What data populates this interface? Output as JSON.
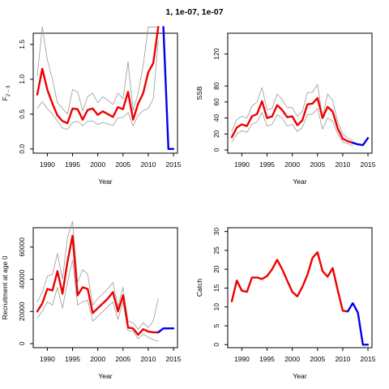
{
  "title": "1, 1e-07, 1e-07",
  "colors": {
    "estimate": "#ee0000",
    "bounds": "#999999",
    "projection": "#0000ee",
    "axes": "#000000"
  },
  "chart_data": [
    {
      "id": "f",
      "type": "line",
      "xlabel": "Year",
      "ylabel": "F",
      "ylabel_sub": "2 − 3",
      "xlim": [
        1987.2,
        2015.8
      ],
      "ylim": [
        -0.06,
        1.66
      ],
      "xticks": [
        1990,
        1995,
        2000,
        2005,
        2010,
        2015
      ],
      "yticks": [
        0.0,
        0.5,
        1.0,
        1.5
      ],
      "ytick_labels": [
        "0.0",
        "0.5",
        "1.0",
        "1.5"
      ],
      "series": [
        {
          "role": "upper",
          "color": "#999999",
          "x": [
            1988,
            1989,
            1990,
            1991,
            1992,
            1993,
            1994,
            1995,
            1996,
            1997,
            1998,
            1999,
            2000,
            2001,
            2002,
            2003,
            2004,
            2005,
            2006,
            2007,
            2008,
            2009,
            2010,
            2011,
            2012
          ],
          "y": [
            1.05,
            1.75,
            1.28,
            1.0,
            0.66,
            0.58,
            0.5,
            0.85,
            0.82,
            0.55,
            0.75,
            0.8,
            0.66,
            0.75,
            0.7,
            0.64,
            0.8,
            0.72,
            1.25,
            0.55,
            0.8,
            1.2,
            1.75,
            1.75,
            1.75
          ]
        },
        {
          "role": "lower",
          "color": "#999999",
          "x": [
            1988,
            1989,
            1990,
            1991,
            1992,
            1993,
            1994,
            1995,
            1996,
            1997,
            1998,
            1999,
            2000,
            2001,
            2002,
            2003,
            2004,
            2005,
            2006,
            2007,
            2008,
            2009,
            2010,
            2011,
            2012
          ],
          "y": [
            0.58,
            0.68,
            0.58,
            0.5,
            0.4,
            0.3,
            0.28,
            0.38,
            0.4,
            0.33,
            0.4,
            0.4,
            0.35,
            0.38,
            0.36,
            0.34,
            0.45,
            0.45,
            0.52,
            0.33,
            0.48,
            0.55,
            0.58,
            0.72,
            1.55
          ]
        },
        {
          "role": "estimate",
          "color": "#ee0000",
          "x": [
            1988,
            1989,
            1990,
            1991,
            1992,
            1993,
            1994,
            1995,
            1996,
            1997,
            1998,
            1999,
            2000,
            2001,
            2002,
            2003,
            2004,
            2005,
            2006,
            2007,
            2008,
            2009,
            2010,
            2011,
            2012
          ],
          "y": [
            0.78,
            1.15,
            0.85,
            0.65,
            0.48,
            0.4,
            0.37,
            0.58,
            0.57,
            0.42,
            0.56,
            0.58,
            0.49,
            0.54,
            0.5,
            0.46,
            0.6,
            0.57,
            0.82,
            0.42,
            0.65,
            0.8,
            1.1,
            1.23,
            1.75
          ]
        },
        {
          "role": "projection",
          "color": "#0000ee",
          "x": [
            2013,
            2014,
            2015
          ],
          "y": [
            1.75,
            0.0,
            0.0
          ]
        }
      ]
    },
    {
      "id": "ssb",
      "type": "line",
      "xlabel": "Year",
      "ylabel": "SSB",
      "xlim": [
        1987.2,
        2015.8
      ],
      "ylim": [
        -4,
        146
      ],
      "xticks": [
        1990,
        1995,
        2000,
        2005,
        2010,
        2015
      ],
      "yticks": [
        0,
        20,
        40,
        60,
        80,
        120
      ],
      "ytick_labels": [
        "0",
        "20",
        "40",
        "60",
        "80",
        "120"
      ],
      "series": [
        {
          "role": "upper",
          "color": "#999999",
          "x": [
            1988,
            1989,
            1990,
            1991,
            1992,
            1993,
            1994,
            1995,
            1996,
            1997,
            1998,
            1999,
            2000,
            2001,
            2002,
            2003,
            2004,
            2005,
            2006,
            2007,
            2008,
            2009,
            2010,
            2011,
            2012
          ],
          "y": [
            24,
            38,
            42,
            40,
            55,
            60,
            78,
            50,
            52,
            70,
            63,
            53,
            53,
            42,
            48,
            72,
            72,
            82,
            40,
            70,
            62,
            35,
            20,
            15,
            12
          ]
        },
        {
          "role": "lower",
          "color": "#999999",
          "x": [
            1988,
            1989,
            1990,
            1991,
            1992,
            1993,
            1994,
            1995,
            1996,
            1997,
            1998,
            1999,
            2000,
            2001,
            2002,
            2003,
            2004,
            2005,
            2006,
            2007,
            2008,
            2009,
            2010,
            2011,
            2012
          ],
          "y": [
            10,
            20,
            24,
            22,
            32,
            35,
            47,
            30,
            32,
            44,
            40,
            30,
            32,
            23,
            28,
            44,
            45,
            52,
            26,
            40,
            36,
            20,
            10,
            8,
            5
          ]
        },
        {
          "role": "estimate",
          "color": "#ee0000",
          "x": [
            1988,
            1989,
            1990,
            1991,
            1992,
            1993,
            1994,
            1995,
            1996,
            1997,
            1998,
            1999,
            2000,
            2001,
            2002,
            2003,
            2004,
            2005,
            2006,
            2007,
            2008,
            2009,
            2010,
            2011,
            2012
          ],
          "y": [
            16,
            28,
            32,
            30,
            42,
            45,
            61,
            40,
            42,
            56,
            50,
            41,
            42,
            31,
            37,
            57,
            58,
            65,
            40,
            54,
            48,
            27,
            14,
            11,
            9
          ]
        },
        {
          "role": "projection",
          "color": "#0000ee",
          "x": [
            2012,
            2013,
            2014,
            2015
          ],
          "y": [
            9,
            7,
            6,
            15
          ]
        }
      ]
    },
    {
      "id": "recruitment",
      "type": "line",
      "xlabel": "Year",
      "ylabel": "Recruitment at age 0",
      "xlim": [
        1987.2,
        2015.8
      ],
      "ylim": [
        -2500,
        72000
      ],
      "xticks": [
        1990,
        1995,
        2000,
        2005,
        2010,
        2015
      ],
      "yticks": [
        0,
        20000,
        40000,
        60000
      ],
      "ytick_labels": [
        "0",
        "20000",
        "40000",
        "60000"
      ],
      "series": [
        {
          "role": "upper",
          "color": "#999999",
          "x": [
            1988,
            1989,
            1990,
            1991,
            1992,
            1993,
            1994,
            1995,
            1996,
            1997,
            1998,
            1999,
            2000,
            2001,
            2002,
            2003,
            2004,
            2005,
            2006,
            2007,
            2008,
            2009,
            2010,
            2011,
            2012
          ],
          "y": [
            26000,
            32000,
            42000,
            43000,
            56000,
            40000,
            66000,
            76000,
            38000,
            46000,
            43000,
            24000,
            28000,
            31000,
            34000,
            38000,
            23000,
            35000,
            14000,
            13000,
            9000,
            13000,
            10000,
            14000,
            28000
          ]
        },
        {
          "role": "lower",
          "color": "#999999",
          "x": [
            1988,
            1989,
            1990,
            1991,
            1992,
            1993,
            1994,
            1995,
            1996,
            1997,
            1998,
            1999,
            2000,
            2001,
            2002,
            2003,
            2004,
            2005,
            2006,
            2007,
            2008,
            2009,
            2010,
            2011,
            2012
          ],
          "y": [
            16000,
            20000,
            26000,
            24000,
            35000,
            22000,
            38000,
            52000,
            24000,
            26000,
            27000,
            14000,
            17000,
            20000,
            23000,
            26000,
            15000,
            26000,
            8000,
            8000,
            3000,
            6000,
            4000,
            2500,
            1500
          ]
        },
        {
          "role": "estimate",
          "color": "#ee0000",
          "x": [
            1988,
            1989,
            1990,
            1991,
            1992,
            1993,
            1994,
            1995,
            1996,
            1997,
            1998,
            1999,
            2000,
            2001,
            2002,
            2003,
            2004,
            2005,
            2006,
            2007,
            2008,
            2009,
            2010,
            2011,
            2012
          ],
          "y": [
            20000,
            25000,
            34000,
            33000,
            45000,
            31000,
            51000,
            67000,
            30000,
            35000,
            34000,
            19000,
            22000,
            25000,
            28000,
            32000,
            20000,
            30000,
            10000,
            9500,
            5500,
            9000,
            7500,
            7000,
            7000
          ]
        },
        {
          "role": "projection",
          "color": "#0000ee",
          "x": [
            2012,
            2013,
            2014,
            2015
          ],
          "y": [
            7000,
            9500,
            9500,
            9500
          ]
        }
      ]
    },
    {
      "id": "catch",
      "type": "line",
      "xlabel": "Year",
      "ylabel": "Catch",
      "xlim": [
        1987.2,
        2015.8
      ],
      "ylim": [
        -0.8,
        31
      ],
      "xticks": [
        1990,
        1995,
        2000,
        2005,
        2010,
        2015
      ],
      "yticks": [
        0,
        5,
        10,
        15,
        20,
        25,
        30
      ],
      "ytick_labels": [
        "0",
        "5",
        "10",
        "15",
        "20",
        "25",
        "30"
      ],
      "series": [
        {
          "role": "estimate",
          "color": "#ee0000",
          "x": [
            1988,
            1989,
            1990,
            1991,
            1992,
            1993,
            1994,
            1995,
            1996,
            1997,
            1998,
            1999,
            2000,
            2001,
            2002,
            2003,
            2004,
            2005,
            2006,
            2007,
            2008,
            2009,
            2010,
            2011
          ],
          "y": [
            11.5,
            17,
            14.3,
            14,
            17.8,
            17.8,
            17.4,
            18.2,
            20,
            22.5,
            20,
            17,
            14,
            12.8,
            15.3,
            18.5,
            23,
            24.5,
            19.5,
            18,
            20.3,
            14.5,
            9,
            8.8
          ]
        },
        {
          "role": "projection",
          "color": "#0000ee",
          "x": [
            2011,
            2012,
            2013,
            2014,
            2015
          ],
          "y": [
            8.8,
            11,
            8.5,
            0,
            0
          ]
        }
      ]
    }
  ]
}
